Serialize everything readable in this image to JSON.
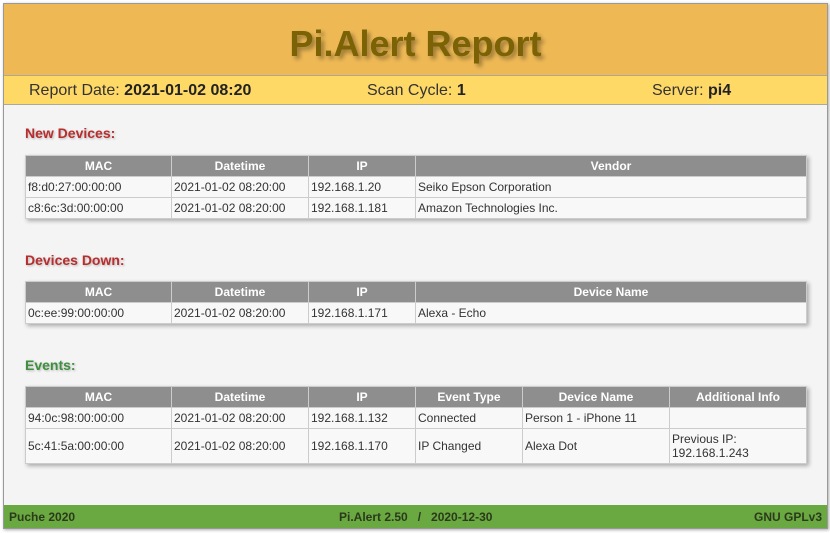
{
  "header": {
    "title": "Pi.Alert Report"
  },
  "info": {
    "report_date_label": "Report Date:",
    "report_date": "2021-01-02 08:20",
    "scan_cycle_label": "Scan Cycle:",
    "scan_cycle": "1",
    "server_label": "Server:",
    "server": "pi4"
  },
  "new_devices": {
    "title": "New Devices:",
    "columns": [
      "MAC",
      "Datetime",
      "IP",
      "Vendor"
    ],
    "rows": [
      [
        "f8:d0:27:00:00:00",
        "2021-01-02 08:20:00",
        "192.168.1.20",
        "Seiko Epson Corporation"
      ],
      [
        "c8:6c:3d:00:00:00",
        "2021-01-02 08:20:00",
        "192.168.1.181",
        "Amazon Technologies Inc."
      ]
    ]
  },
  "devices_down": {
    "title": "Devices Down:",
    "columns": [
      "MAC",
      "Datetime",
      "IP",
      "Device Name"
    ],
    "rows": [
      [
        "0c:ee:99:00:00:00",
        "2021-01-02 08:20:00",
        "192.168.1.171",
        "Alexa - Echo"
      ]
    ]
  },
  "events": {
    "title": "Events:",
    "columns": [
      "MAC",
      "Datetime",
      "IP",
      "Event Type",
      "Device Name",
      "Additional Info"
    ],
    "rows": [
      [
        "94:0c:98:00:00:00",
        "2021-01-02 08:20:00",
        "192.168.1.132",
        "Connected",
        "Person 1 - iPhone 11",
        ""
      ],
      [
        "5c:41:5a:00:00:00",
        "2021-01-02 08:20:00",
        "192.168.1.170",
        "IP Changed",
        "Alexa Dot",
        "Previous IP: 192.168.1.243"
      ]
    ]
  },
  "footer": {
    "left": "Puche 2020",
    "center": "Pi.Alert 2.50   /   2020-12-30",
    "right": "GNU GPLv3"
  },
  "colors": {
    "header": "#eeb955",
    "subheader": "#ffd966",
    "footer": "#6aa842",
    "table_header": "#8e8e8e"
  }
}
